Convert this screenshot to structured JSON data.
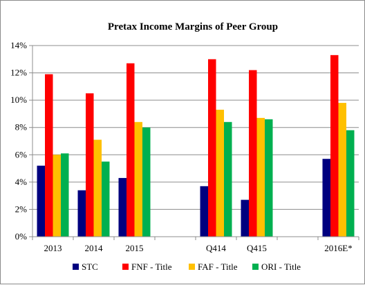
{
  "chart_data": {
    "type": "bar",
    "title": "Pretax Income Margins of Peer Group",
    "xlabel": "",
    "ylabel": "",
    "ylim": [
      0,
      14
    ],
    "y_ticks": [
      "0%",
      "2%",
      "4%",
      "6%",
      "8%",
      "10%",
      "12%",
      "14%"
    ],
    "y_unit": "%",
    "grid": true,
    "legend_position": "bottom",
    "categories": [
      "2013",
      "2014",
      "2015",
      "",
      "Q414",
      "Q415",
      "",
      "2016E*"
    ],
    "series": [
      {
        "name": "STC",
        "color": "#00007f",
        "values": [
          5.2,
          3.4,
          4.3,
          null,
          3.7,
          2.7,
          null,
          5.7
        ]
      },
      {
        "name": "FNF - Title",
        "color": "#ff0000",
        "values": [
          11.9,
          10.5,
          12.7,
          null,
          13.0,
          12.2,
          null,
          13.3
        ]
      },
      {
        "name": "FAF - Title",
        "color": "#ffc000",
        "values": [
          6.0,
          7.1,
          8.4,
          null,
          9.3,
          8.7,
          null,
          9.8
        ]
      },
      {
        "name": "ORI - Title",
        "color": "#00b050",
        "values": [
          6.1,
          5.5,
          8.0,
          null,
          8.4,
          8.6,
          null,
          7.8
        ]
      }
    ]
  }
}
